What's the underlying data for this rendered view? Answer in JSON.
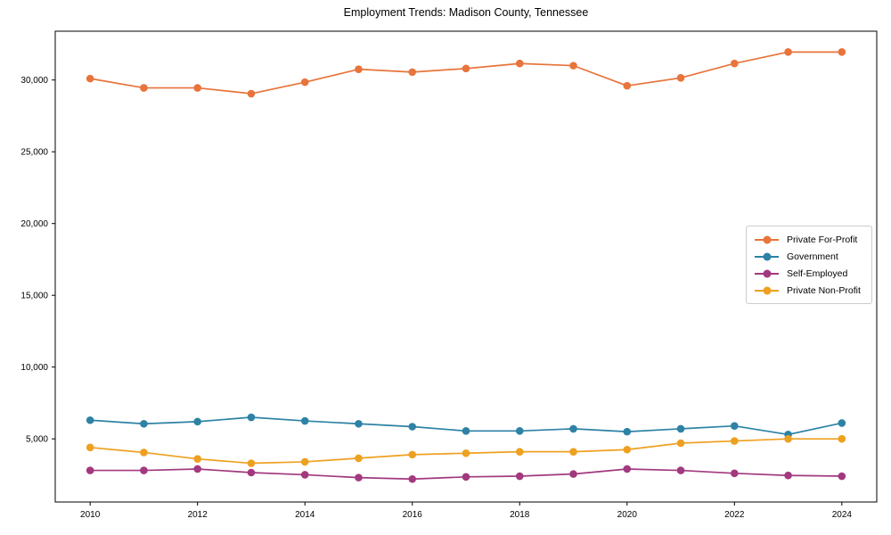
{
  "chart_data": {
    "type": "line",
    "title": "Employment Trends: Madison County, Tennessee",
    "xlabel": "",
    "ylabel": "",
    "grid": false,
    "legend_position": "center right",
    "xlim": [
      2009.35,
      2024.65
    ],
    "ylim": [
      600,
      33400
    ],
    "x": [
      2010,
      2011,
      2012,
      2013,
      2014,
      2015,
      2016,
      2017,
      2018,
      2019,
      2020,
      2021,
      2022,
      2023,
      2024
    ],
    "x_ticks": [
      2010,
      2012,
      2014,
      2016,
      2018,
      2020,
      2022,
      2024
    ],
    "x_tick_labels": [
      "2010",
      "2012",
      "2014",
      "2016",
      "2018",
      "2020",
      "2022",
      "2024"
    ],
    "y_ticks": [
      5000,
      10000,
      15000,
      20000,
      25000,
      30000
    ],
    "y_tick_labels": [
      "5,000",
      "10,000",
      "15,000",
      "20,000",
      "25,000",
      "30,000"
    ],
    "series": [
      {
        "name": "Private For-Profit",
        "color": "#E8743B",
        "values": [
          30100,
          29450,
          29450,
          29050,
          29850,
          30750,
          30550,
          30800,
          31150,
          31000,
          29600,
          30150,
          31150,
          31950,
          31950
        ]
      },
      {
        "name": "Government",
        "color": "#2D82A5",
        "values": [
          6300,
          6050,
          6200,
          6500,
          6250,
          6050,
          5850,
          5550,
          5550,
          5700,
          5500,
          5700,
          5900,
          5300,
          6100
        ]
      },
      {
        "name": "Self-Employed",
        "color": "#A2397F",
        "values": [
          2800,
          2800,
          2900,
          2650,
          2500,
          2300,
          2200,
          2350,
          2400,
          2550,
          2900,
          2800,
          2600,
          2450,
          2400
        ]
      },
      {
        "name": "Private Non-Profit",
        "color": "#EEA020",
        "values": [
          4400,
          4050,
          3600,
          3300,
          3400,
          3650,
          3900,
          4000,
          4100,
          4100,
          4250,
          4700,
          4850,
          5000,
          5000
        ]
      }
    ]
  }
}
